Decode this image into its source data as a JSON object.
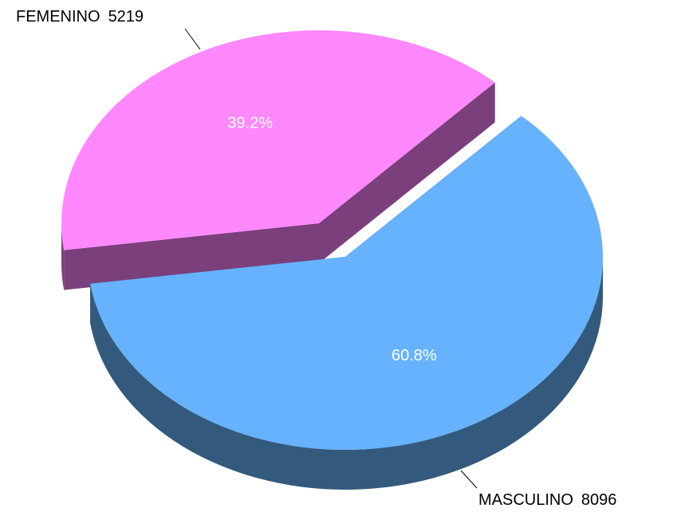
{
  "chart_data": {
    "type": "pie",
    "three_d": true,
    "categories": [
      "FEMENINO",
      "MASCULINO"
    ],
    "values": [
      5219,
      8096
    ],
    "percent_labels": [
      "39.2%",
      "60.8%"
    ],
    "colors": [
      "#ff88ff",
      "#66b2ff"
    ],
    "side_colors": [
      "#7b3f7b",
      "#335a7d"
    ],
    "exploded": [
      true,
      false
    ]
  }
}
